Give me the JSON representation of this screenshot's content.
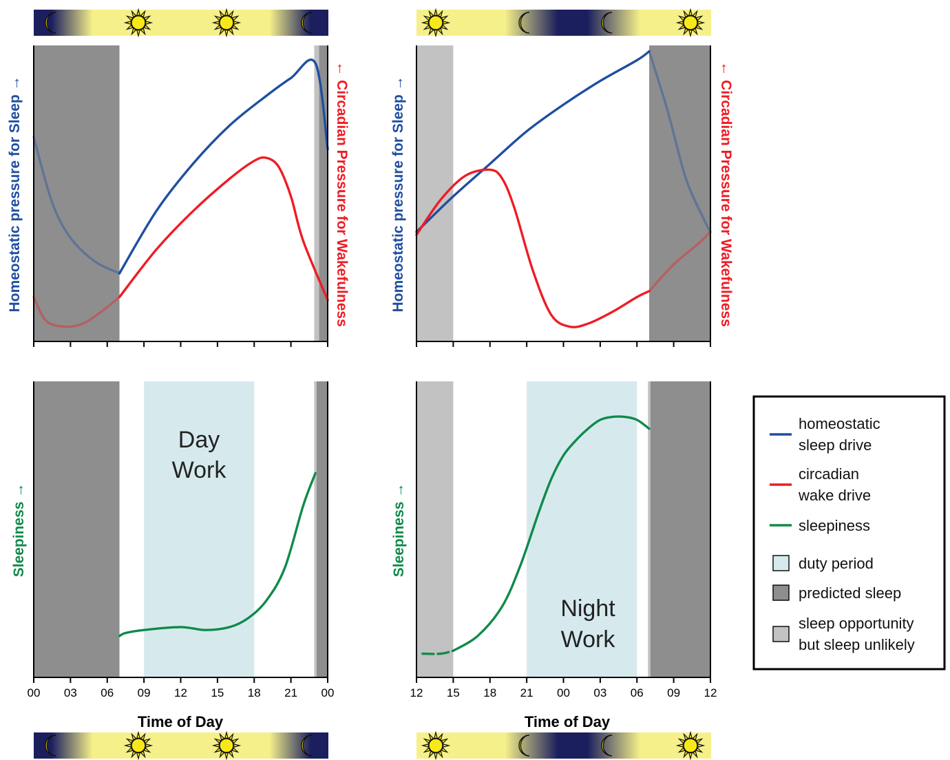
{
  "colors": {
    "homeostatic": "#1f4ea1",
    "circadian": "#ee1c24",
    "sleepiness": "#0f8a4a",
    "duty": "#d6eaee",
    "predicted_sleep": "#8e8e8e",
    "sleep_opportunity": "#c2c2c2",
    "night": "#1b1f5e",
    "day": "#f6f08a",
    "sun": "#f7e81a",
    "moon": "#f7e81a"
  },
  "axis_labels": {
    "homeostatic": "Homeostatic pressure for Sleep →",
    "circadian": "← Circadian Pressure for Wakefulness",
    "sleepiness": "Sleepiness →",
    "time_of_day": "Time of Day"
  },
  "work_labels": {
    "day_line1": "Day",
    "day_line2": "Work",
    "night_line1": "Night",
    "night_line2": "Work"
  },
  "icons": [
    "moon-icon",
    "sun-icon"
  ],
  "legend": {
    "items": [
      {
        "kind": "line",
        "color_key": "homeostatic",
        "line1": "homeostatic",
        "line2": "sleep drive"
      },
      {
        "kind": "line",
        "color_key": "circadian",
        "line1": "circadian",
        "line2": "wake drive"
      },
      {
        "kind": "line",
        "color_key": "sleepiness",
        "line1": "sleepiness",
        "line2": ""
      },
      {
        "kind": "box",
        "color_key": "duty",
        "line1": "duty period",
        "line2": ""
      },
      {
        "kind": "box",
        "color_key": "predicted_sleep",
        "line1": "predicted sleep",
        "line2": ""
      },
      {
        "kind": "box",
        "color_key": "sleep_opportunity",
        "line1": "sleep opportunity",
        "line2": "but sleep unlikely"
      }
    ]
  },
  "chart_data": [
    {
      "id": "day-drives",
      "type": "line",
      "x_range": [
        0,
        24
      ],
      "x_ticks": [
        "00",
        "03",
        "06",
        "09",
        "12",
        "15",
        "18",
        "21",
        "00"
      ],
      "shaded_periods": [
        {
          "kind": "predicted_sleep",
          "from": 0,
          "to": 7
        },
        {
          "kind": "sleep_opportunity",
          "from": 22.9,
          "to": 23.3
        },
        {
          "kind": "predicted_sleep",
          "from": 23.3,
          "to": 24
        }
      ],
      "series": [
        {
          "name": "homeostatic sleep drive",
          "color_key": "homeostatic",
          "x": [
            7,
            10,
            13,
            16,
            19,
            21,
            23,
            24
          ],
          "y": [
            0.23,
            0.44,
            0.6,
            0.73,
            0.83,
            0.89,
            0.94,
            0.65
          ]
        },
        {
          "name": "homeostatic sleep drive (during sleep)",
          "color_key": "homeostatic",
          "faded": true,
          "x": [
            0,
            1.5,
            3,
            5,
            7
          ],
          "y": [
            0.69,
            0.47,
            0.35,
            0.27,
            0.23
          ]
        },
        {
          "name": "circadian wake drive",
          "color_key": "circadian",
          "x": [
            7,
            10,
            13,
            16,
            18,
            19,
            20,
            21,
            22,
            24
          ],
          "y": [
            0.15,
            0.31,
            0.44,
            0.55,
            0.61,
            0.62,
            0.59,
            0.49,
            0.34,
            0.14
          ]
        },
        {
          "name": "circadian wake drive (during sleep)",
          "color_key": "circadian",
          "faded": true,
          "x": [
            0,
            1,
            2.5,
            4,
            5.5,
            7
          ],
          "y": [
            0.15,
            0.07,
            0.05,
            0.06,
            0.1,
            0.15
          ]
        }
      ]
    },
    {
      "id": "night-drives",
      "type": "line",
      "x_range": [
        12,
        36
      ],
      "x_ticks": [
        "12",
        "15",
        "18",
        "21",
        "00",
        "03",
        "06",
        "09",
        "12"
      ],
      "shaded_periods": [
        {
          "kind": "sleep_opportunity",
          "from": 12,
          "to": 15
        },
        {
          "kind": "predicted_sleep",
          "from": 31,
          "to": 36
        }
      ],
      "series": [
        {
          "name": "homeostatic sleep drive",
          "color_key": "homeostatic",
          "x": [
            12,
            15,
            18,
            21,
            24,
            27,
            30,
            31
          ],
          "y": [
            0.37,
            0.49,
            0.6,
            0.71,
            0.8,
            0.88,
            0.95,
            0.98
          ]
        },
        {
          "name": "homeostatic sleep drive (during sleep)",
          "color_key": "homeostatic",
          "faded": true,
          "x": [
            31,
            32.5,
            34,
            35.5,
            36
          ],
          "y": [
            0.98,
            0.78,
            0.55,
            0.41,
            0.37
          ]
        },
        {
          "name": "circadian wake drive",
          "color_key": "circadian",
          "x": [
            12,
            14,
            16,
            18,
            19,
            20,
            21.5,
            23,
            24.5,
            26,
            28,
            30,
            31
          ],
          "y": [
            0.36,
            0.48,
            0.56,
            0.58,
            0.55,
            0.45,
            0.24,
            0.09,
            0.05,
            0.06,
            0.1,
            0.15,
            0.17
          ]
        },
        {
          "name": "circadian wake drive (during sleep)",
          "color_key": "circadian",
          "faded": true,
          "x": [
            31,
            33,
            35,
            36
          ],
          "y": [
            0.17,
            0.26,
            0.33,
            0.37
          ]
        }
      ]
    },
    {
      "id": "day-sleepiness",
      "type": "line",
      "x_range": [
        0,
        24
      ],
      "x_ticks": [
        "00",
        "03",
        "06",
        "09",
        "12",
        "15",
        "18",
        "21",
        "00"
      ],
      "shaded_periods": [
        {
          "kind": "predicted_sleep",
          "from": 0,
          "to": 7
        },
        {
          "kind": "duty",
          "from": 9,
          "to": 18
        },
        {
          "kind": "sleep_opportunity",
          "from": 22.9,
          "to": 23.1
        },
        {
          "kind": "predicted_sleep",
          "from": 23.1,
          "to": 24
        }
      ],
      "series": [
        {
          "name": "sleepiness",
          "color_key": "sleepiness",
          "x": [
            7,
            7.5,
            9,
            12,
            14,
            16,
            17.5,
            19,
            20.5,
            22,
            23
          ],
          "y": [
            0.14,
            0.15,
            0.16,
            0.17,
            0.16,
            0.17,
            0.2,
            0.26,
            0.37,
            0.58,
            0.69
          ]
        }
      ]
    },
    {
      "id": "night-sleepiness",
      "type": "line",
      "x_range": [
        12,
        36
      ],
      "x_ticks": [
        "12",
        "15",
        "18",
        "21",
        "00",
        "03",
        "06",
        "09",
        "12"
      ],
      "shaded_periods": [
        {
          "kind": "sleep_opportunity",
          "from": 12,
          "to": 15
        },
        {
          "kind": "duty",
          "from": 21,
          "to": 30
        },
        {
          "kind": "sleep_opportunity",
          "from": 30.9,
          "to": 31.1
        },
        {
          "kind": "predicted_sleep",
          "from": 31.1,
          "to": 36
        }
      ],
      "series": [
        {
          "name": "sleepiness (sleep opportunity)",
          "color_key": "sleepiness",
          "dashed": true,
          "x": [
            12.5,
            14,
            15
          ],
          "y": [
            0.08,
            0.08,
            0.09
          ]
        },
        {
          "name": "sleepiness",
          "color_key": "sleepiness",
          "x": [
            15,
            17,
            19,
            20.5,
            22,
            23,
            24,
            25,
            26,
            27,
            28,
            29,
            30,
            31
          ],
          "y": [
            0.09,
            0.14,
            0.24,
            0.38,
            0.56,
            0.67,
            0.75,
            0.8,
            0.84,
            0.87,
            0.88,
            0.88,
            0.87,
            0.84
          ]
        }
      ]
    }
  ]
}
